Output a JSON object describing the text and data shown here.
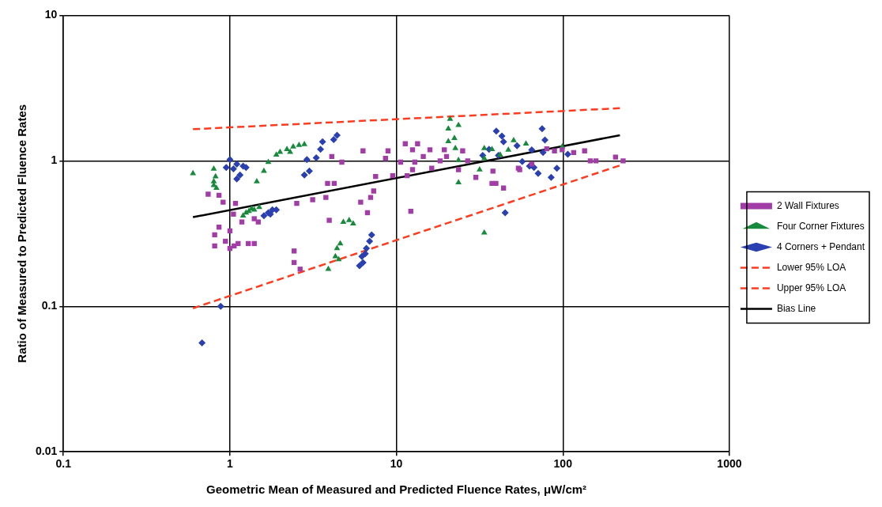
{
  "chart_data": {
    "type": "scatter",
    "xlabel": "Geometric Mean of Measured and Predicted Fluence Rates, μW/cm²",
    "ylabel": "Ratio of Measured to Predicted Fluence Rates",
    "log": "xy",
    "grid": true,
    "legend": "right",
    "xlim": [
      0.1,
      1000
    ],
    "ylim": [
      0.01,
      10
    ],
    "xticks": [
      0.1,
      1,
      10,
      100,
      1000
    ],
    "yticks": [
      0.01,
      0.1,
      1,
      10
    ],
    "series": [
      {
        "name": "2 Wall Fixtures",
        "color": "#a23ca6",
        "marker": "square",
        "x": [
          0.74,
          0.86,
          0.91,
          1.08,
          1.05,
          1.18,
          1.4,
          1.48,
          0.86,
          0.81,
          0.81,
          0.94,
          1.0,
          1.0,
          1.06,
          1.12,
          1.29,
          1.4,
          2.43,
          2.43,
          2.64,
          2.52,
          3.14,
          3.77,
          3.95,
          3.86,
          4.23,
          4.09,
          4.7,
          6.3,
          7.5,
          7.3,
          6.1,
          6.7,
          7.0,
          8.9,
          8.6,
          9.5,
          11.6,
          10.6,
          11.3,
          12.5,
          13.4,
          14.5,
          12.9,
          12.5,
          12.2,
          15.9,
          16.3,
          18.3,
          19.4,
          20,
          23.6,
          25,
          26.8,
          30,
          38,
          39.6,
          37.5,
          44,
          54,
          55,
          65,
          80,
          89,
          99,
          116,
          135,
          146,
          158,
          207,
          230
        ],
        "values": [
          0.59,
          0.58,
          0.52,
          0.51,
          0.43,
          0.38,
          0.4,
          0.38,
          0.35,
          0.31,
          0.26,
          0.28,
          0.33,
          0.25,
          0.26,
          0.27,
          0.27,
          0.27,
          0.24,
          0.2,
          0.18,
          0.51,
          0.54,
          0.56,
          0.39,
          0.7,
          0.7,
          1.07,
          0.98,
          1.17,
          0.78,
          0.62,
          0.52,
          0.44,
          0.56,
          1.17,
          1.04,
          0.79,
          0.79,
          0.98,
          1.31,
          1.19,
          1.31,
          1.07,
          0.98,
          0.87,
          0.45,
          1.19,
          0.89,
          1.0,
          1.19,
          1.07,
          0.87,
          1.17,
          1.0,
          0.77,
          0.85,
          0.7,
          0.7,
          0.65,
          0.89,
          0.87,
          0.95,
          1.21,
          1.17,
          1.19,
          1.14,
          1.17,
          1.0,
          1.0,
          1.06,
          1.0
        ]
      },
      {
        "name": "Four Corner Fixtures",
        "color": "#178a3c",
        "marker": "triangle",
        "x": [
          0.6,
          0.8,
          0.82,
          0.8,
          0.83,
          0.8,
          1.45,
          1.6,
          1.7,
          1.9,
          2.0,
          2.2,
          2.4,
          2.6,
          2.8,
          2.3,
          1.2,
          1.3,
          1.35,
          1.5,
          1.4,
          1.25,
          3.9,
          4.3,
          4.4,
          4.6,
          4.5,
          4.8,
          5.2,
          5.5,
          21,
          23.6,
          20.5,
          22.3,
          20.5,
          22.6,
          23.6,
          31.6,
          23.6,
          33.7,
          37.5,
          33.7,
          42,
          47,
          50.6,
          60,
          33.7,
          99
        ],
        "values": [
          0.82,
          0.88,
          0.78,
          0.72,
          0.65,
          0.68,
          0.72,
          0.85,
          0.98,
          1.1,
          1.15,
          1.2,
          1.25,
          1.28,
          1.3,
          1.15,
          0.42,
          0.45,
          0.47,
          0.48,
          0.46,
          0.44,
          0.18,
          0.22,
          0.25,
          0.27,
          0.21,
          0.38,
          0.39,
          0.37,
          1.94,
          1.76,
          1.66,
          1.43,
          1.36,
          1.22,
          1.01,
          0.87,
          0.71,
          1.04,
          1.2,
          1.22,
          1.1,
          1.19,
          1.38,
          1.31,
          0.32,
          1.25
        ]
      },
      {
        "name": "4 Corners + Pendant",
        "color": "#2a3fb0",
        "marker": "diamond",
        "x": [
          0.68,
          0.88,
          0.95,
          1.0,
          1.05,
          1.1,
          1.15,
          1.2,
          1.25,
          1.1,
          1.6,
          1.7,
          1.8,
          1.9,
          1.75,
          2.8,
          3.0,
          2.9,
          3.3,
          3.5,
          3.6,
          4.2,
          4.4,
          6.0,
          6.3,
          6.5,
          6.6,
          6.9,
          7.1,
          6.2,
          45,
          39.8,
          43,
          44,
          75,
          78,
          76,
          53,
          65,
          57,
          63,
          67,
          71,
          85,
          92,
          107,
          36,
          33,
          41
        ],
        "values": [
          0.056,
          0.1,
          0.9,
          1.02,
          0.88,
          0.75,
          0.8,
          0.92,
          0.9,
          0.95,
          0.42,
          0.44,
          0.46,
          0.46,
          0.43,
          0.8,
          0.85,
          1.02,
          1.05,
          1.2,
          1.35,
          1.4,
          1.5,
          0.19,
          0.2,
          0.23,
          0.25,
          0.28,
          0.31,
          0.22,
          0.44,
          1.6,
          1.48,
          1.35,
          1.66,
          1.39,
          1.14,
          1.27,
          1.19,
          0.99,
          0.92,
          0.9,
          0.82,
          0.77,
          0.89,
          1.11,
          1.2,
          1.09,
          1.09
        ]
      },
      {
        "name": "Lower 95% LOA",
        "type": "line",
        "color": "#ff3b1f",
        "line_style": "dashed",
        "x": [
          0.6,
          220
        ],
        "values": [
          0.097,
          0.93
        ]
      },
      {
        "name": "Upper 95% LOA",
        "type": "line",
        "color": "#ff3b1f",
        "line_style": "dashed",
        "x": [
          0.6,
          220
        ],
        "values": [
          1.65,
          2.3
        ]
      },
      {
        "name": "Bias Line",
        "type": "line",
        "color": "#000000",
        "line_style": "solid",
        "x": [
          0.6,
          220
        ],
        "values": [
          0.41,
          1.5
        ]
      }
    ]
  }
}
